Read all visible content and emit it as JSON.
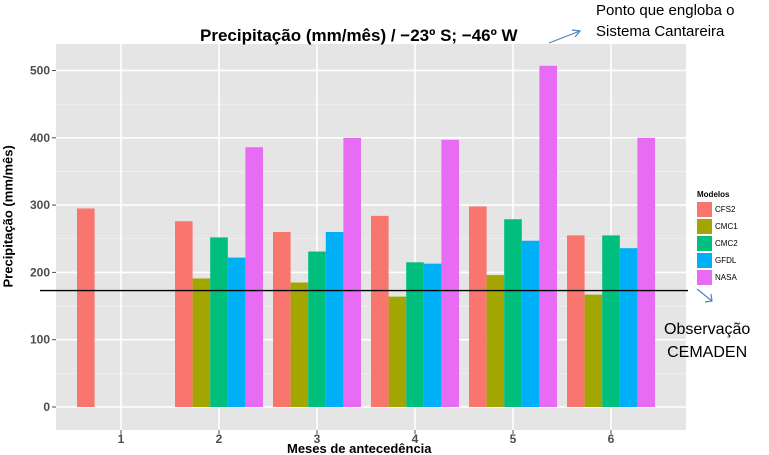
{
  "chart_data": {
    "type": "bar",
    "title": "Precipitação (mm/mês) / −23º S; −46º W",
    "ylabel": "Precipitação (mm/mês)",
    "xlabel_partial": "Meses de antecedência",
    "categories": [
      "1",
      "2",
      "3",
      "4",
      "5",
      "6"
    ],
    "ylim": [
      -20,
      540
    ],
    "yticks": [
      0,
      100,
      200,
      300,
      400,
      500
    ],
    "grid": true,
    "legend_title": "Modelos",
    "legend_position": "right",
    "series": [
      {
        "name": "CFS2",
        "color": "#F8766D",
        "values": [
          295,
          276,
          260,
          284,
          298,
          255
        ]
      },
      {
        "name": "CMC1",
        "color": "#A3A500",
        "values": [
          null,
          191,
          185,
          164,
          196,
          167
        ]
      },
      {
        "name": "CMC2",
        "color": "#00BF7D",
        "values": [
          null,
          252,
          231,
          215,
          279,
          255
        ]
      },
      {
        "name": "GFDL",
        "color": "#00B0F6",
        "values": [
          null,
          222,
          260,
          213,
          247,
          236
        ]
      },
      {
        "name": "NASA",
        "color": "#E76BF3",
        "values": [
          null,
          386,
          400,
          397,
          507,
          400
        ]
      }
    ],
    "reference_line": {
      "value": 173,
      "color": "#000000"
    },
    "annotations": {
      "top": [
        "Ponto que engloba o",
        "Sistema Cantareira"
      ],
      "observation": [
        "Observação",
        "CEMADEN"
      ]
    },
    "colors": {
      "panel": "#E5E5E5",
      "grid": "#FFFFFF",
      "annotation_arrow": "#4F81BD"
    }
  }
}
